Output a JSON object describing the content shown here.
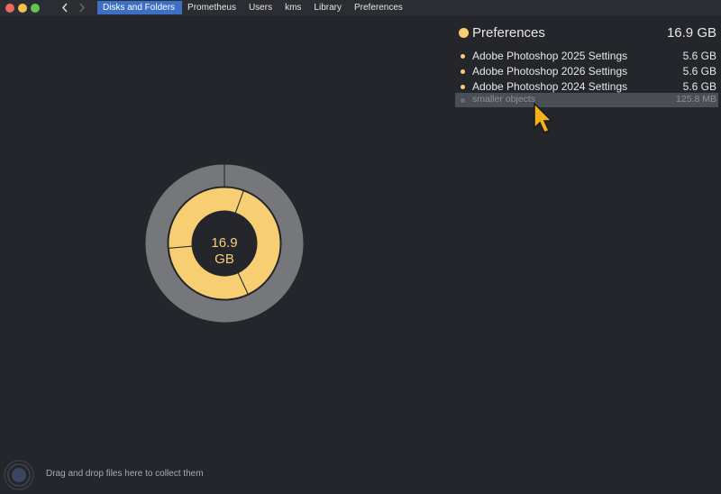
{
  "toolbar": {
    "breadcrumbs": [
      "Disks and Folders",
      "Prometheus",
      "Users",
      "kms",
      "Library",
      "Preferences"
    ]
  },
  "header": {
    "name": "Preferences",
    "size": "16.9 GB"
  },
  "items": [
    {
      "name": "Adobe Photoshop 2025 Settings",
      "size": "5.6 GB"
    },
    {
      "name": "Adobe Photoshop 2026 Settings",
      "size": "5.6 GB"
    },
    {
      "name": "Adobe Photoshop 2024 Settings",
      "size": "5.6 GB"
    }
  ],
  "smaller": {
    "name": "smaller objects",
    "size": "125.8  MB"
  },
  "center": {
    "value": "16.9",
    "unit": "GB"
  },
  "footer": "Drag and drop files here to collect them"
}
